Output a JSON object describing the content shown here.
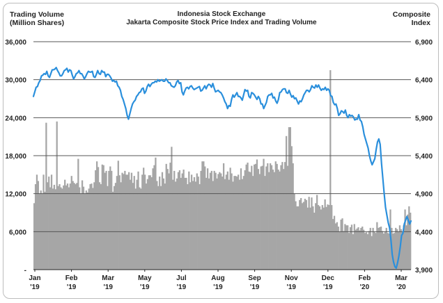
{
  "chart_data": {
    "type": "bar+line",
    "title": "Indonesia Stock Exchange",
    "subtitle": "Jakarta Composite Stock Price Index and Trading Volume",
    "left_axis_title": [
      "Trading Volume",
      "(Million Shares)"
    ],
    "right_axis_title": [
      "Composite",
      "Index"
    ],
    "left_ticks": [
      "36,000",
      "30,000",
      "24,000",
      "18,000",
      "12,000",
      "6,000",
      "-"
    ],
    "right_ticks": [
      "6,900",
      "6,400",
      "5,900",
      "5,400",
      "4,900",
      "4,400",
      "3,900"
    ],
    "ylim_left": [
      0,
      36000
    ],
    "ylim_right": [
      3900,
      6900
    ],
    "x_tick_labels": [
      {
        "month": "Jan",
        "year": "'19"
      },
      {
        "month": "Feb",
        "year": "'19"
      },
      {
        "month": "Mar",
        "year": "'19"
      },
      {
        "month": "May",
        "year": "'19"
      },
      {
        "month": "Jul",
        "year": "'19"
      },
      {
        "month": "Aug",
        "year": "'19"
      },
      {
        "month": "Sep",
        "year": "'19"
      },
      {
        "month": "Nov",
        "year": "'19"
      },
      {
        "month": "Dec",
        "year": "'19"
      },
      {
        "month": "Feb",
        "year": "'20"
      },
      {
        "month": "Mar",
        "year": "'20"
      }
    ],
    "grid": true,
    "colors": {
      "volume": "#a6a6a6",
      "index": "#2a8fdc",
      "grid": "#555555"
    },
    "volume_series": {
      "name": "Trading Volume",
      "values": [
        10500,
        13500,
        15000,
        14000,
        12000,
        12500,
        12000,
        15000,
        12300,
        23200,
        13800,
        14700,
        13000,
        15000,
        12800,
        13400,
        12700,
        23400,
        13200,
        13500,
        13000,
        12800,
        13300,
        14200,
        13300,
        13600,
        13000,
        13600,
        14800,
        14000,
        13700,
        13500,
        13700,
        17500,
        13000,
        12000,
        14100,
        13100,
        12000,
        12500,
        12200,
        12800,
        13500,
        13600,
        12900,
        13800,
        15700,
        17100,
        16200,
        13800,
        13500,
        16600,
        16500,
        15300,
        15600,
        13200,
        15600,
        16300,
        15600,
        12300,
        13200,
        13700,
        14800,
        17200,
        14900,
        13800,
        15300,
        15100,
        15600,
        15000,
        15000,
        15400,
        14200,
        15300,
        13700,
        14800,
        12800,
        14200,
        15500,
        13000,
        12800,
        15000,
        16100,
        15000,
        13600,
        14300,
        14900,
        14900,
        14600,
        16000,
        16500,
        17700,
        14000,
        13200,
        14700,
        13200,
        15400,
        14400,
        13600,
        16700,
        15900,
        15200,
        16900,
        19400,
        14200,
        15600,
        13900,
        14400,
        15400,
        15700,
        14500,
        15200,
        15800,
        14500,
        14500,
        13500,
        15500,
        13800,
        15000,
        14000,
        14600,
        13900,
        15200,
        14700,
        13500,
        15600,
        17100,
        17100,
        16300,
        14500,
        16000,
        14400,
        15300,
        15600,
        14000,
        15600,
        15300,
        14400,
        15100,
        15400,
        15200,
        14700,
        16800,
        14300,
        15000,
        15500,
        14200,
        16100,
        15200,
        13900,
        14800,
        14800,
        14700,
        15000,
        14200,
        16000,
        14300,
        14800,
        15700,
        16600,
        16900,
        15500,
        15400,
        16400,
        14800,
        16600,
        16700,
        17400,
        15900,
        15100,
        16300,
        16400,
        17500,
        14800,
        16300,
        16800,
        15400,
        16800,
        16500,
        15800,
        15400,
        17100,
        16700,
        15800,
        15500,
        16500,
        17000,
        15900,
        17000,
        21100,
        16400,
        22500,
        22500,
        19500,
        16800,
        12000,
        10800,
        10000,
        10000,
        11000,
        11300,
        10500,
        10700,
        11200,
        11000,
        9800,
        11500,
        9800,
        11400,
        10000,
        9000,
        10500,
        11800,
        10200,
        10000,
        9500,
        10200,
        9800,
        11100,
        9900,
        10300,
        10200,
        31500,
        10200,
        8000,
        8500,
        7300,
        7500,
        6800,
        6000,
        7900,
        8100,
        6100,
        7200,
        7000,
        7000,
        5800,
        6700,
        7100,
        5600,
        7200,
        6300,
        6500,
        6700,
        6200,
        6600,
        6800,
        6300,
        5800,
        5900,
        5600,
        6100,
        6600,
        5300,
        6600,
        6000,
        5800,
        7500,
        6600,
        6700,
        6800,
        6100,
        5700,
        6000,
        6600,
        5800,
        5700,
        9500,
        6600,
        5700,
        5800,
        6600,
        6400,
        6000,
        7000,
        6400,
        6000,
        7000,
        9500,
        7000,
        8700,
        10000,
        9000
      ]
    },
    "index_series": {
      "name": "Composite Index",
      "values": [
        6180,
        6240,
        6300,
        6310,
        6360,
        6390,
        6450,
        6460,
        6480,
        6470,
        6510,
        6450,
        6430,
        6480,
        6530,
        6530,
        6540,
        6560,
        6520,
        6490,
        6450,
        6450,
        6480,
        6520,
        6530,
        6550,
        6500,
        6530,
        6520,
        6460,
        6410,
        6440,
        6480,
        6490,
        6520,
        6480,
        6480,
        6450,
        6410,
        6440,
        6480,
        6510,
        6500,
        6500,
        6510,
        6440,
        6430,
        6470,
        6520,
        6480,
        6470,
        6520,
        6500,
        6500,
        6440,
        6470,
        6470,
        6450,
        6420,
        6380,
        6390,
        6370,
        6380,
        6320,
        6300,
        6260,
        6180,
        6140,
        6080,
        6020,
        5930,
        5880,
        5950,
        6020,
        6080,
        6110,
        6130,
        6180,
        6200,
        6230,
        6240,
        6280,
        6290,
        6220,
        6250,
        6310,
        6340,
        6310,
        6340,
        6360,
        6360,
        6380,
        6370,
        6400,
        6380,
        6390,
        6400,
        6380,
        6380,
        6410,
        6390,
        6360,
        6360,
        6320,
        6310,
        6300,
        6320,
        6370,
        6390,
        6350,
        6360,
        6240,
        6200,
        6250,
        6290,
        6300,
        6280,
        6310,
        6320,
        6290,
        6270,
        6280,
        6290,
        6300,
        6310,
        6250,
        6260,
        6290,
        6320,
        6280,
        6320,
        6340,
        6330,
        6300,
        6350,
        6290,
        6240,
        6250,
        6260,
        6240,
        6230,
        6200,
        6160,
        6110,
        6080,
        6020,
        6060,
        6050,
        6140,
        6200,
        6170,
        6200,
        6230,
        6180,
        6180,
        6160,
        6130,
        6200,
        6270,
        6250,
        6260,
        6180,
        6160,
        6230,
        6220,
        6200,
        6170,
        6140,
        6180,
        6150,
        6080,
        6080,
        6020,
        6060,
        6100,
        6180,
        6200,
        6200,
        6220,
        6160,
        6170,
        6120,
        6090,
        6140,
        6230,
        6240,
        6270,
        6280,
        6280,
        6230,
        6220,
        6260,
        6210,
        6170,
        6190,
        6150,
        6160,
        6120,
        6080,
        6120,
        6110,
        6150,
        6200,
        6230,
        6260,
        6260,
        6240,
        6270,
        6320,
        6300,
        6290,
        6330,
        6300,
        6330,
        6290,
        6260,
        6280,
        6270,
        6300,
        6260,
        6280,
        6260,
        6190,
        6180,
        6100,
        6070,
        6080,
        6020,
        5930,
        5950,
        5990,
        5980,
        5960,
        6000,
        5930,
        5900,
        5940,
        5920,
        5930,
        5910,
        5870,
        5880,
        5880,
        5940,
        5870,
        5850,
        5780,
        5680,
        5620,
        5560,
        5500,
        5400,
        5330,
        5280,
        5320,
        5360,
        5480,
        5580,
        5620,
        5550,
        5300,
        5100,
        4900,
        4720,
        4620,
        4520,
        4450,
        4300,
        4100,
        4000,
        3940,
        3920,
        3990,
        4080,
        4200,
        4350,
        4380,
        4500,
        4550,
        4600,
        4550,
        4500,
        4540
      ]
    }
  }
}
